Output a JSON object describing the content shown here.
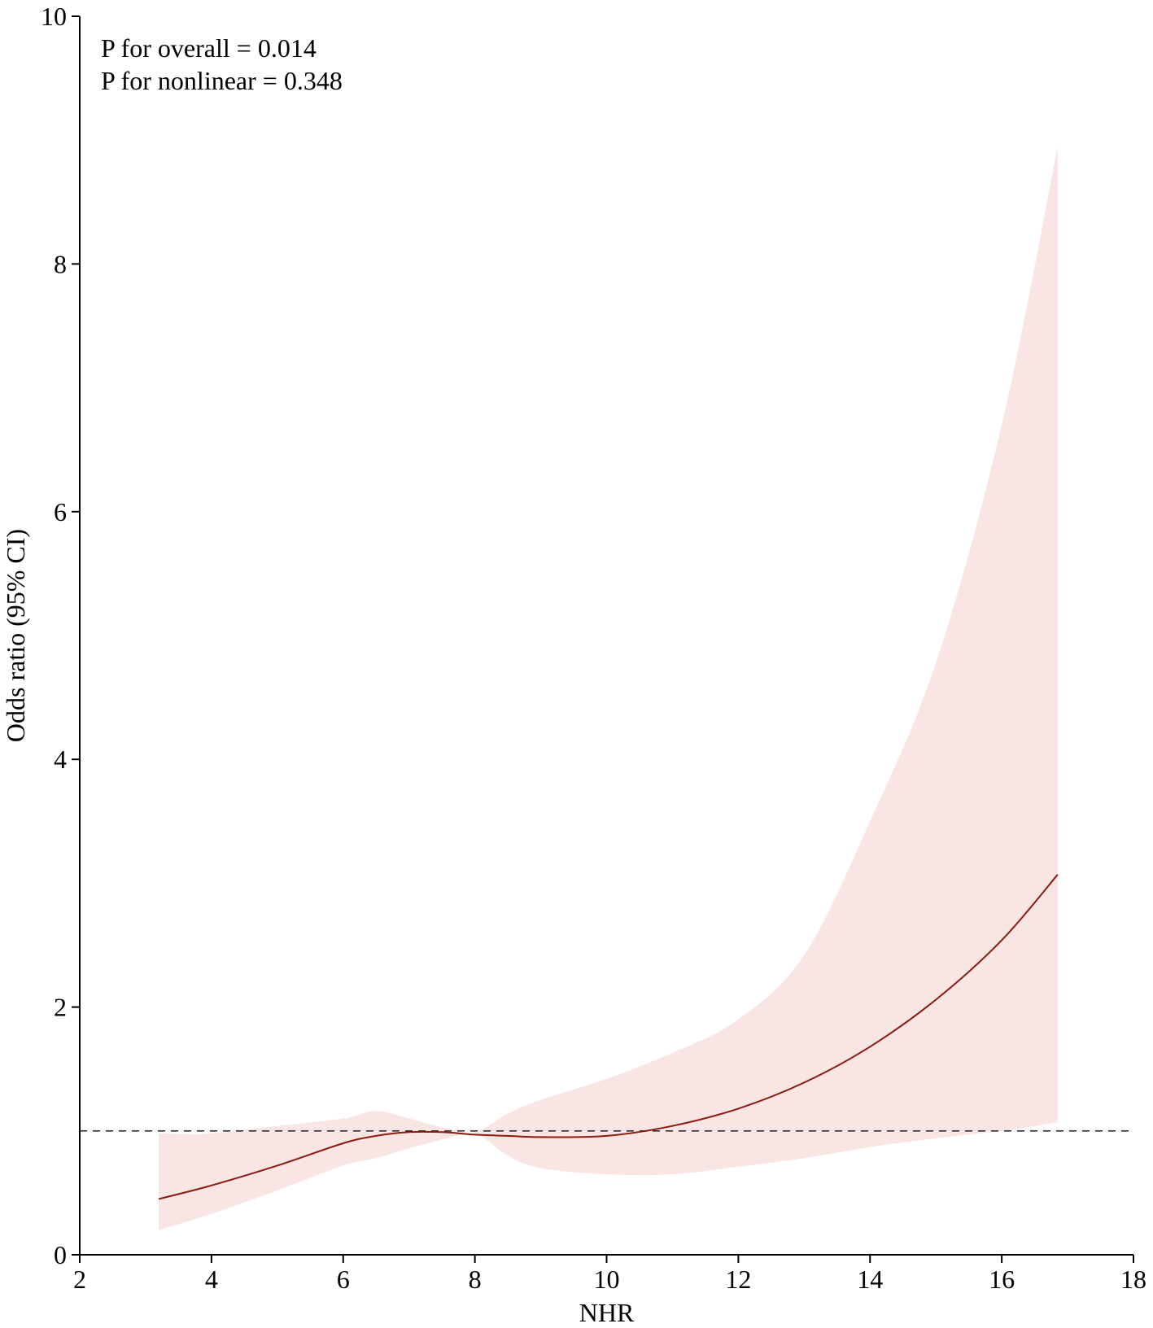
{
  "chart_data": {
    "type": "line",
    "title": "",
    "xlabel": "NHR",
    "ylabel": "Odds ratio (95% CI)",
    "xlim": [
      2,
      18
    ],
    "ylim": [
      0,
      10
    ],
    "xticks": [
      2,
      4,
      6,
      8,
      10,
      12,
      14,
      16,
      18
    ],
    "yticks": [
      0,
      2,
      4,
      6,
      8,
      10
    ],
    "reference_line": {
      "y": 1,
      "style": "dashed",
      "color": "#333333"
    },
    "annotations": [
      "P for overall = 0.014",
      "P for nonlinear = 0.348"
    ],
    "grid": false,
    "series": [
      {
        "color": "#8b1a10",
        "band_color": "#f9e5e3",
        "x": [
          3.2,
          4.0,
          5.0,
          6.0,
          6.5,
          7.0,
          7.5,
          8.0,
          8.5,
          9.0,
          10.0,
          11.0,
          12.0,
          13.0,
          14.0,
          15.0,
          16.0,
          16.85
        ],
        "y": [
          0.45,
          0.56,
          0.72,
          0.9,
          0.96,
          0.99,
          0.99,
          0.97,
          0.96,
          0.95,
          0.96,
          1.04,
          1.18,
          1.39,
          1.68,
          2.06,
          2.54,
          3.07
        ],
        "lower": [
          0.2,
          0.33,
          0.52,
          0.72,
          0.78,
          0.86,
          0.93,
          0.98,
          0.8,
          0.7,
          0.65,
          0.65,
          0.71,
          0.78,
          0.87,
          0.94,
          1.0,
          1.07
        ],
        "upper": [
          0.98,
          0.98,
          1.04,
          1.1,
          1.16,
          1.1,
          1.03,
          0.99,
          1.14,
          1.25,
          1.42,
          1.63,
          1.9,
          2.42,
          3.5,
          4.78,
          6.7,
          8.95
        ]
      }
    ]
  }
}
